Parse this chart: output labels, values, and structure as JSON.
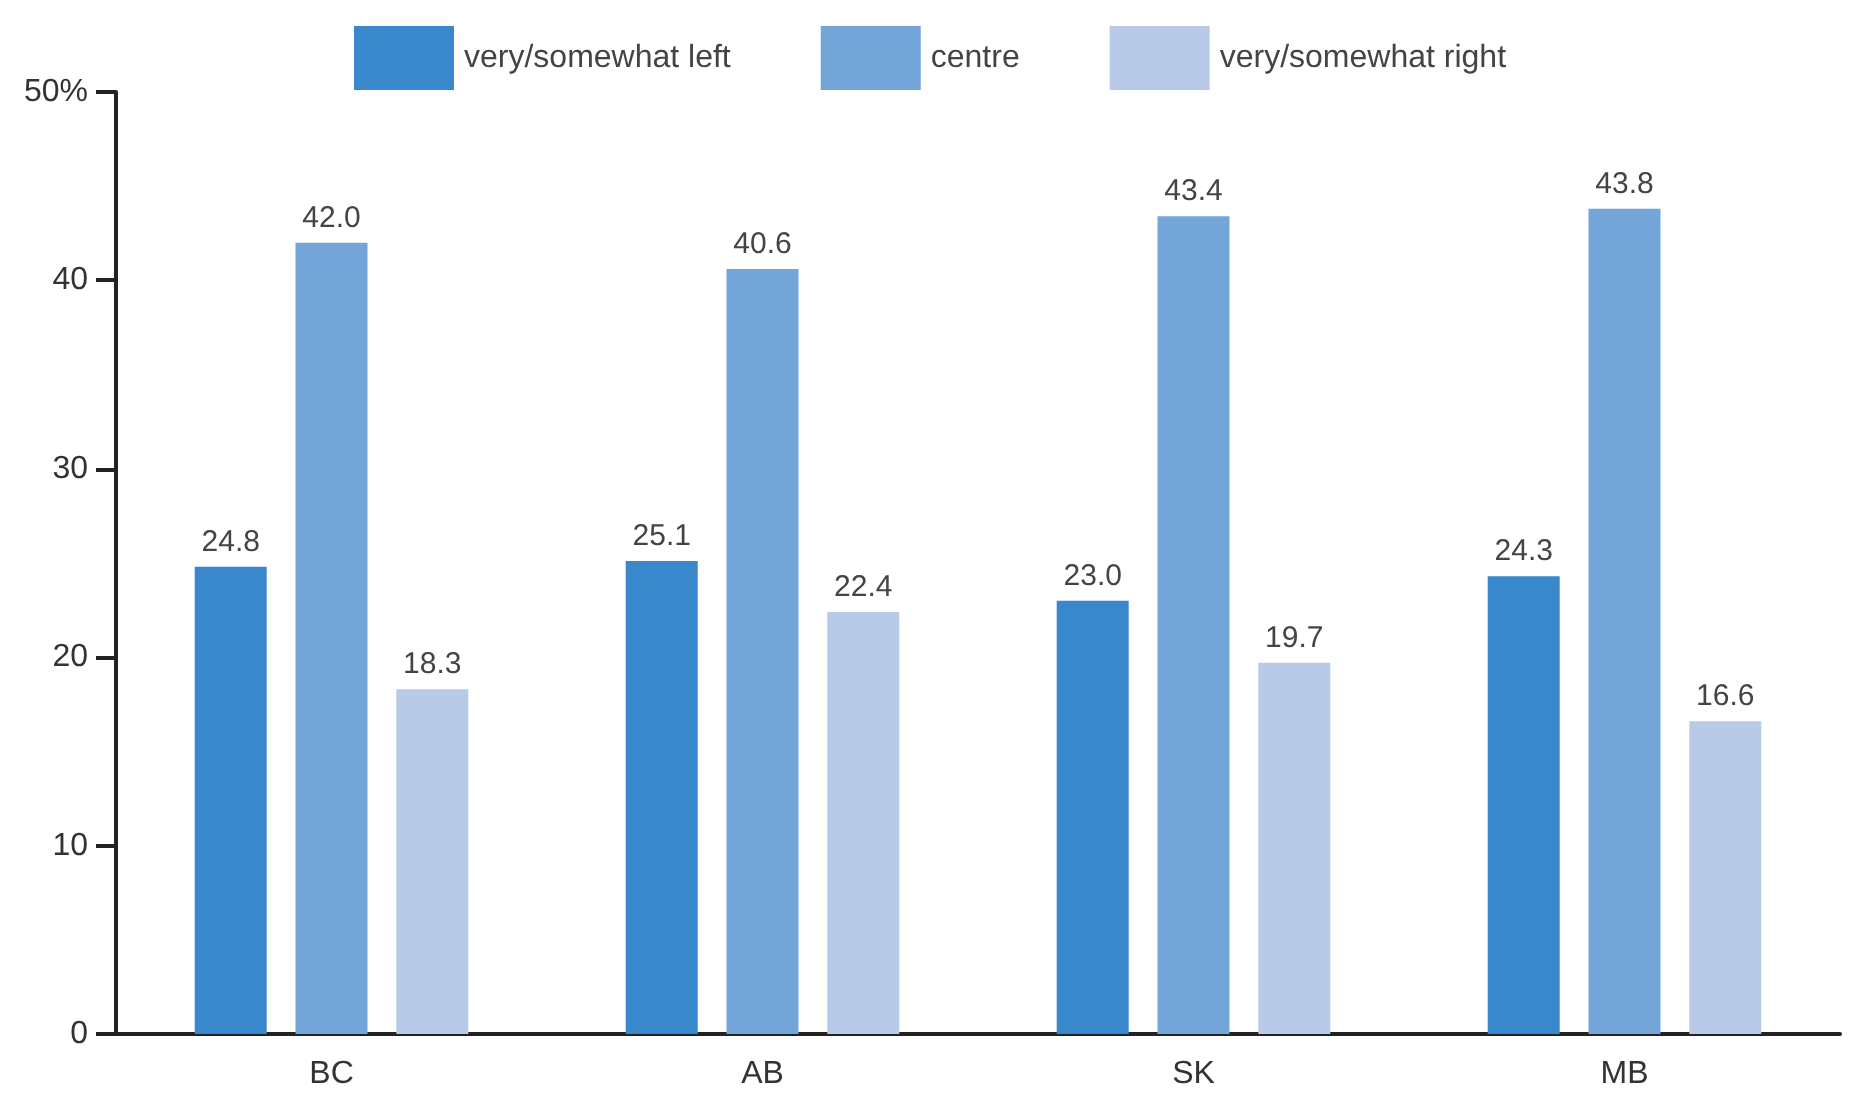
{
  "chart_data": {
    "type": "bar",
    "categories": [
      "BC",
      "AB",
      "SK",
      "MB"
    ],
    "series": [
      {
        "name": "very/somewhat left",
        "color": "#3a88cc",
        "values": [
          24.8,
          25.1,
          23.0,
          24.3
        ],
        "value_labels": [
          "24.8",
          "25.1",
          "23.0",
          "24.3"
        ]
      },
      {
        "name": "centre",
        "color": "#74a5d8",
        "values": [
          42.0,
          40.6,
          43.4,
          43.8
        ],
        "value_labels": [
          "42.0",
          "40.6",
          "43.4",
          "43.8"
        ]
      },
      {
        "name": "very/somewhat right",
        "color": "#b7cbe8",
        "values": [
          18.3,
          22.4,
          19.7,
          16.6
        ],
        "value_labels": [
          "18.3",
          "22.4",
          "19.7",
          "16.6"
        ]
      }
    ],
    "ylim": [
      0,
      50
    ],
    "yticks": [
      0,
      10,
      20,
      30,
      40,
      {
        "value": 50,
        "label": "50%"
      }
    ],
    "legend": "top"
  }
}
